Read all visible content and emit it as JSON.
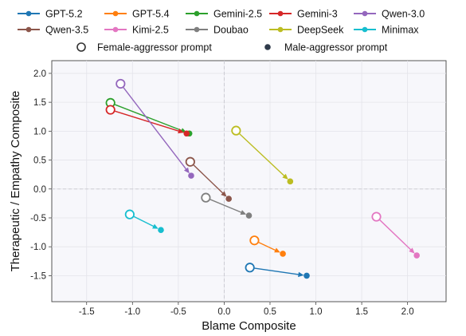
{
  "chart_data": {
    "type": "scatter",
    "xlabel": "Blame Composite",
    "ylabel": "Therapeutic / Empathy Composite",
    "xlim": [
      -1.88,
      2.42
    ],
    "ylim": [
      -1.95,
      2.22
    ],
    "xticks": [
      -1.5,
      -1.0,
      -0.5,
      0.0,
      0.5,
      1.0,
      1.5,
      2.0
    ],
    "yticks": [
      2.0,
      1.5,
      1.0,
      0.5,
      0.0,
      -0.5,
      -1.0,
      -1.5
    ],
    "grid": true,
    "reference_lines": {
      "x": 0,
      "y": 0
    },
    "legend_placement": "top-outside",
    "marker_legend": {
      "female": "Female-aggressor prompt",
      "male": "Male-aggressor prompt"
    },
    "series": [
      {
        "name": "GPT-5.2",
        "color": "#1f77b4",
        "female": [
          0.28,
          -1.36
        ],
        "male": [
          0.9,
          -1.5
        ]
      },
      {
        "name": "GPT-5.4",
        "color": "#ff7f0e",
        "female": [
          0.33,
          -0.89
        ],
        "male": [
          0.64,
          -1.12
        ]
      },
      {
        "name": "Gemini-2.5",
        "color": "#2ca02c",
        "female": [
          -1.24,
          1.49
        ],
        "male": [
          -0.38,
          0.96
        ]
      },
      {
        "name": "Gemini-3",
        "color": "#d62728",
        "female": [
          -1.24,
          1.37
        ],
        "male": [
          -0.41,
          0.96
        ]
      },
      {
        "name": "Qwen-3.0",
        "color": "#9467bd",
        "female": [
          -1.13,
          1.82
        ],
        "male": [
          -0.36,
          0.23
        ]
      },
      {
        "name": "Qwen-3.5",
        "color": "#8c564b",
        "female": [
          -0.37,
          0.47
        ],
        "male": [
          0.05,
          -0.17
        ]
      },
      {
        "name": "Kimi-2.5",
        "color": "#e377c2",
        "female": [
          1.66,
          -0.48
        ],
        "male": [
          2.1,
          -1.15
        ]
      },
      {
        "name": "Doubao",
        "color": "#7f7f7f",
        "female": [
          -0.2,
          -0.15
        ],
        "male": [
          0.27,
          -0.46
        ]
      },
      {
        "name": "DeepSeek",
        "color": "#bcbd22",
        "female": [
          0.13,
          1.01
        ],
        "male": [
          0.72,
          0.13
        ]
      },
      {
        "name": "Minimax",
        "color": "#17becf",
        "female": [
          -1.03,
          -0.44
        ],
        "male": [
          -0.69,
          -0.71
        ]
      }
    ]
  }
}
